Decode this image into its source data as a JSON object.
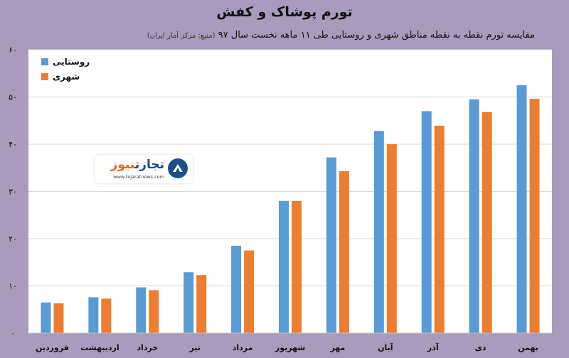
{
  "title": "تورم پوشاک و کفش",
  "subtitle": "مقایسه تورم نقطه به نقطه مناطق شهری و روستایی طی ۱۱ ماهه نخست سال ۹۷",
  "source": "(منبع: مرکز آمار ایران)",
  "logo": {
    "name_part1": "تجارت",
    "name_part2": "نیوز",
    "url": "www.tejaratnews.com"
  },
  "colors": {
    "background": "#a89bbd",
    "plot_bg": "#ffffff",
    "rural": "#5b9bd5",
    "urban": "#ed7d31",
    "grid": "#d9d9d9"
  },
  "chart_data": {
    "type": "bar",
    "categories": [
      "بهمن",
      "دی",
      "آذر",
      "آبان",
      "مهر",
      "شهریور",
      "مرداد",
      "تیر",
      "خرداد",
      "اردیبهشت",
      "فروردین"
    ],
    "series": [
      {
        "name": "روستایی",
        "values": [
          52.5,
          49.5,
          47.0,
          42.8,
          37.2,
          28.0,
          18.5,
          12.9,
          9.7,
          7.6,
          6.5
        ]
      },
      {
        "name": "شهری",
        "values": [
          49.6,
          46.8,
          43.9,
          40.0,
          34.3,
          28.0,
          17.5,
          12.3,
          9.1,
          7.3,
          6.3
        ]
      }
    ],
    "ylim": [
      0,
      60
    ],
    "yticks": [
      "۰",
      "۱۰",
      "۲۰",
      "۳۰",
      "۴۰",
      "۵۰",
      "۶۰"
    ],
    "grid": true,
    "legend_position": "top-left"
  }
}
